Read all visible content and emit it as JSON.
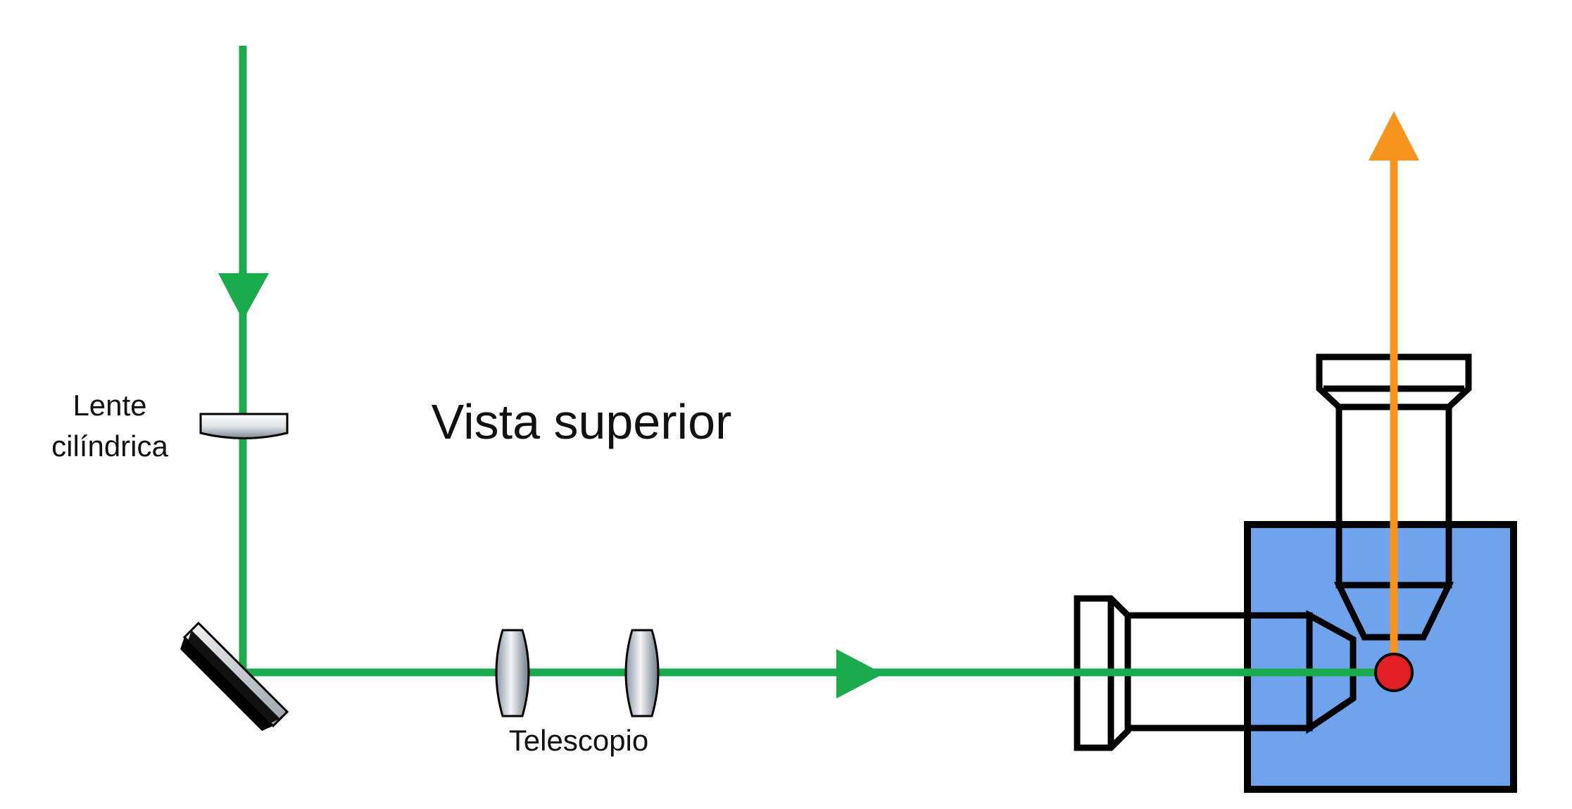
{
  "diagram": {
    "title": "Vista superior",
    "labels": {
      "lens_line1": "Lente",
      "lens_line2": "cilíndrica",
      "telescope": "Telescopio"
    }
  },
  "colors": {
    "excitation_beam": "#1aab4a",
    "emission_beam": "#f7941d",
    "sample": "#e31e24",
    "chamber": "#6fa3ee",
    "outline": "#000000",
    "lens_light": "#f4f6f8",
    "lens_dark": "#8a96a3"
  },
  "icons": [
    "cylindrical-lens-icon",
    "mirror-icon",
    "lens-icon",
    "objective-icon",
    "sample-icon",
    "arrow-icon"
  ]
}
